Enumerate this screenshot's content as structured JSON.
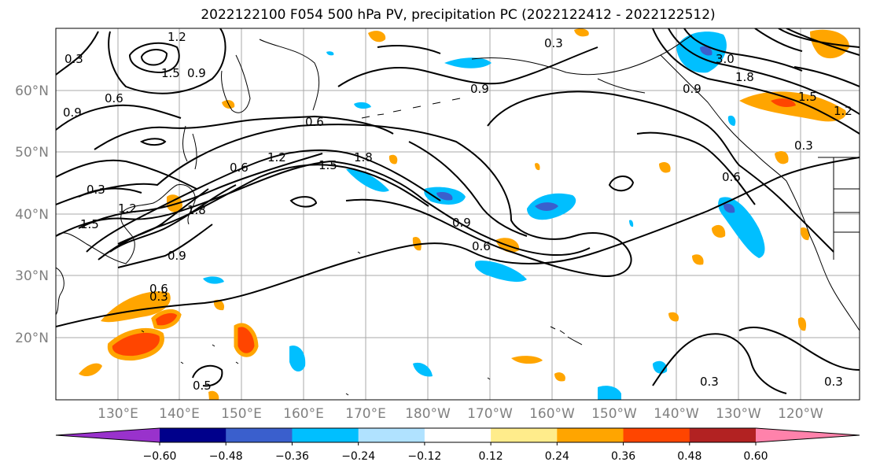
{
  "title": "2022122100 F054 500 hPa PV, precipitation PC (2022122412 - 2022122512)",
  "lat_labels": [
    "60°N",
    "50°N",
    "40°N",
    "30°N",
    "20°N"
  ],
  "lon_labels": [
    "130°E",
    "140°E",
    "150°E",
    "160°E",
    "170°E",
    "180°W",
    "170°W",
    "160°W",
    "150°W",
    "140°W",
    "130°W",
    "120°W"
  ],
  "contour_labels": [
    "1.2",
    "1.5",
    "0.9",
    "0.3",
    "0.6",
    "0.9",
    "0.3",
    "0.9",
    "3.0",
    "1.8",
    "0.9",
    "1.5",
    "1.2",
    "0.6",
    "0.3",
    "0.6",
    "1.2",
    "1.5",
    "1.8",
    "0.3",
    "0.6",
    "1.5",
    "1.2",
    "1.8",
    "0.9",
    "0.6",
    "0.9",
    "0.6",
    "0.3",
    "0.5",
    "0.3",
    "0.3"
  ],
  "colorbar": {
    "ticks": [
      "−0.60",
      "−0.48",
      "−0.36",
      "−0.24",
      "−0.12",
      "0.12",
      "0.24",
      "0.36",
      "0.48",
      "0.60"
    ],
    "colors": [
      "#9932CC",
      "#00008B",
      "#3A5FCD",
      "#00BFFF",
      "#B0E2FF",
      "#FFFFFF",
      "#FFEC8B",
      "#FFA500",
      "#FF4500",
      "#B22222",
      "#FF82AB"
    ]
  },
  "map": {
    "lon_range": [
      "120°E",
      "115°W"
    ],
    "lat_range": [
      "10°N",
      "70°N"
    ],
    "gridlines": true
  }
}
